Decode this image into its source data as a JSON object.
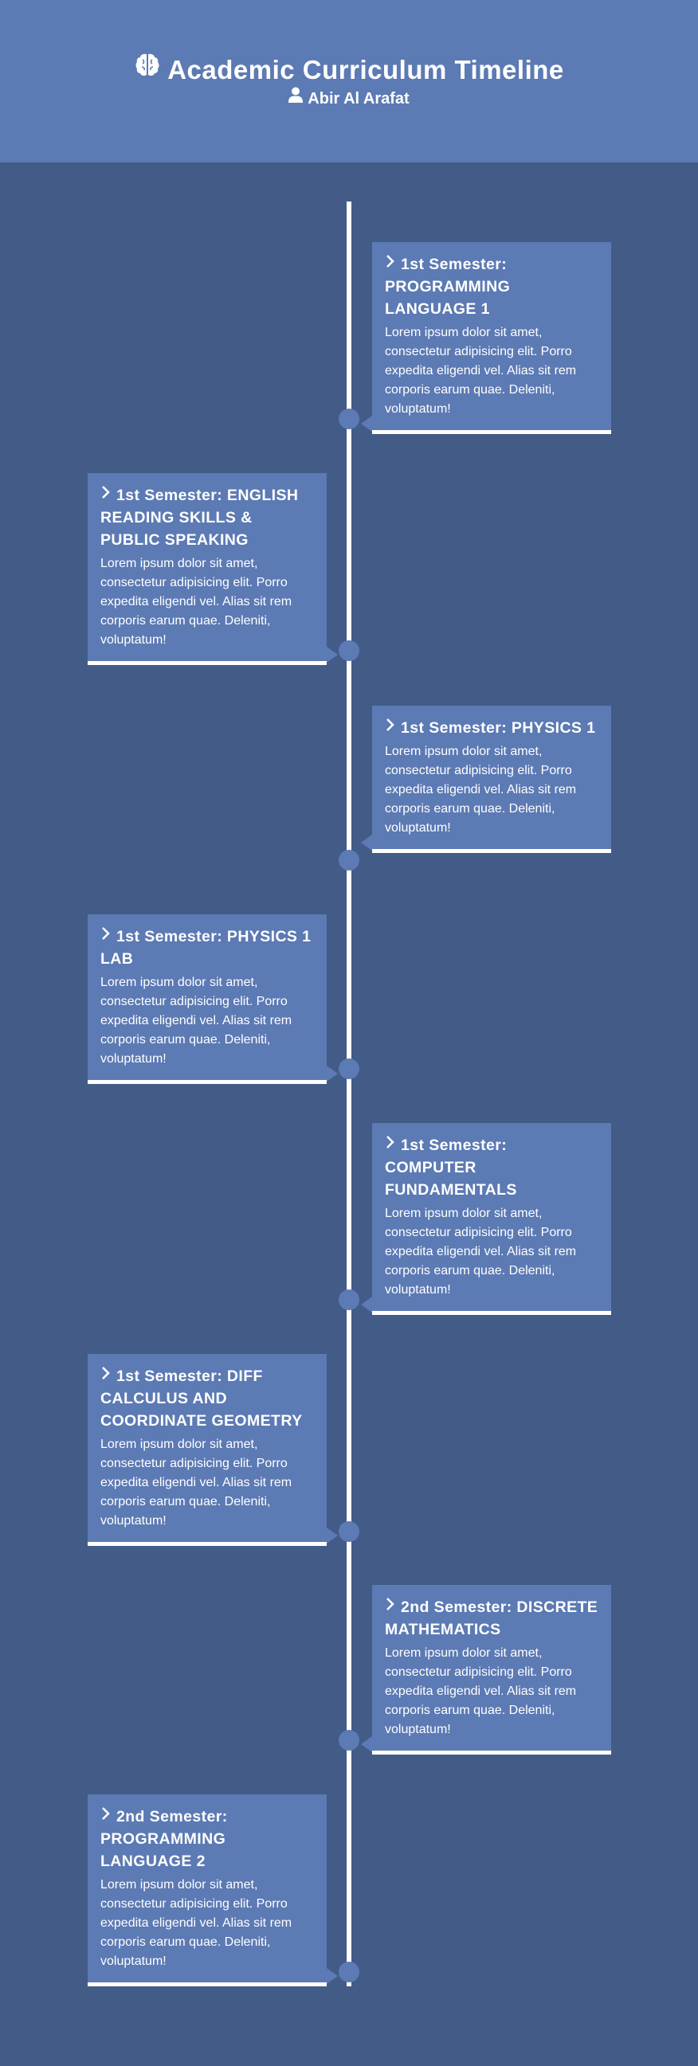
{
  "header": {
    "title": "Academic Curriculum Timeline",
    "author": "Abir Al Arafat",
    "title_icon": "brain-icon",
    "author_icon": "user-icon"
  },
  "colors": {
    "page_background": "#425c87",
    "header_background": "#5c7ab4",
    "card_background": "#5c7ab4",
    "timeline_line": "#ffffff",
    "text": "#ffffff"
  },
  "timeline": {
    "items": [
      {
        "title": "1st Semester: PROGRAMMING LANGUAGE 1",
        "body": "Lorem ipsum dolor sit amet, consectetur adipisicing elit. Porro expedita eligendi vel. Alias sit rem corporis earum quae. Deleniti, voluptatum!",
        "side": "right"
      },
      {
        "title": "1st Semester: ENGLISH READING SKILLS & PUBLIC SPEAKING",
        "body": "Lorem ipsum dolor sit amet, consectetur adipisicing elit. Porro expedita eligendi vel. Alias sit rem corporis earum quae. Deleniti, voluptatum!",
        "side": "left"
      },
      {
        "title": "1st Semester: PHYSICS 1",
        "body": "Lorem ipsum dolor sit amet, consectetur adipisicing elit. Porro expedita eligendi vel. Alias sit rem corporis earum quae. Deleniti, voluptatum!",
        "side": "right"
      },
      {
        "title": "1st Semester: PHYSICS 1 LAB",
        "body": "Lorem ipsum dolor sit amet, consectetur adipisicing elit. Porro expedita eligendi vel. Alias sit rem corporis earum quae. Deleniti, voluptatum!",
        "side": "left"
      },
      {
        "title": "1st Semester: COMPUTER FUNDAMENTALS",
        "body": "Lorem ipsum dolor sit amet, consectetur adipisicing elit. Porro expedita eligendi vel. Alias sit rem corporis earum quae. Deleniti, voluptatum!",
        "side": "right"
      },
      {
        "title": "1st Semester: DIFF CALCULUS AND COORDINATE GEOMETRY",
        "body": "Lorem ipsum dolor sit amet, consectetur adipisicing elit. Porro expedita eligendi vel. Alias sit rem corporis earum quae. Deleniti, voluptatum!",
        "side": "left"
      },
      {
        "title": "2nd Semester: DISCRETE MATHEMATICS",
        "body": "Lorem ipsum dolor sit amet, consectetur adipisicing elit. Porro expedita eligendi vel. Alias sit rem corporis earum quae. Deleniti, voluptatum!",
        "side": "right"
      },
      {
        "title": "2nd Semester: PROGRAMMING LANGUAGE 2",
        "body": "Lorem ipsum dolor sit amet, consectetur adipisicing elit. Porro expedita eligendi vel. Alias sit rem corporis earum quae. Deleniti, voluptatum!",
        "side": "left"
      }
    ]
  }
}
